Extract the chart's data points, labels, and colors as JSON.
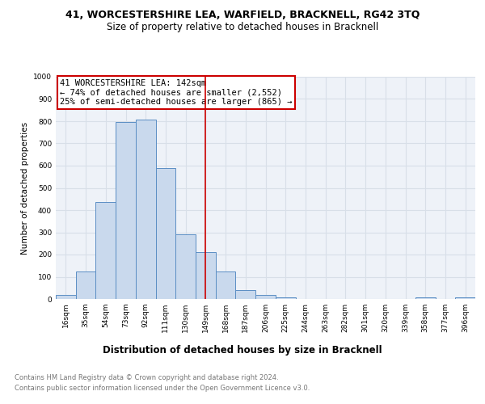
{
  "title": "41, WORCESTERSHIRE LEA, WARFIELD, BRACKNELL, RG42 3TQ",
  "subtitle": "Size of property relative to detached houses in Bracknell",
  "xlabel": "Distribution of detached houses by size in Bracknell",
  "ylabel": "Number of detached properties",
  "bar_labels": [
    "16sqm",
    "35sqm",
    "54sqm",
    "73sqm",
    "92sqm",
    "111sqm",
    "130sqm",
    "149sqm",
    "168sqm",
    "187sqm",
    "206sqm",
    "225sqm",
    "244sqm",
    "263sqm",
    "282sqm",
    "301sqm",
    "320sqm",
    "339sqm",
    "358sqm",
    "377sqm",
    "396sqm"
  ],
  "bar_values": [
    18,
    125,
    435,
    795,
    808,
    590,
    290,
    212,
    125,
    40,
    18,
    8,
    0,
    0,
    0,
    0,
    0,
    0,
    8,
    0,
    8
  ],
  "bar_color": "#c9d9ed",
  "bar_edge_color": "#5b8ec4",
  "ylim": [
    0,
    1000
  ],
  "yticks": [
    0,
    100,
    200,
    300,
    400,
    500,
    600,
    700,
    800,
    900,
    1000
  ],
  "vline_x": 7.0,
  "vline_color": "#cc0000",
  "annotation_line1": "41 WORCESTERSHIRE LEA: 142sqm",
  "annotation_line2": "← 74% of detached houses are smaller (2,552)",
  "annotation_line3": "25% of semi-detached houses are larger (865) →",
  "annotation_box_color": "#cc0000",
  "footer_line1": "Contains HM Land Registry data © Crown copyright and database right 2024.",
  "footer_line2": "Contains public sector information licensed under the Open Government Licence v3.0.",
  "background_color": "#eef2f8",
  "grid_color": "#d8dfe8",
  "title_fontsize": 9,
  "subtitle_fontsize": 8.5,
  "xlabel_fontsize": 8.5,
  "ylabel_fontsize": 7.5,
  "tick_fontsize": 6.5,
  "annotation_fontsize": 7.5,
  "footer_fontsize": 6.0
}
